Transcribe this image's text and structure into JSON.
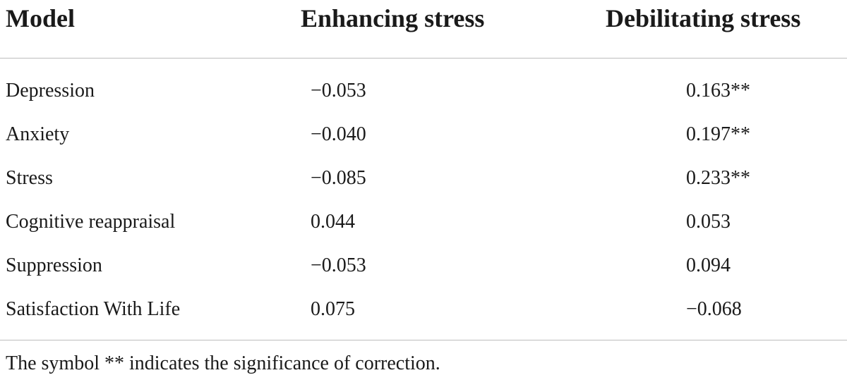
{
  "table": {
    "headers": {
      "model": "Model",
      "enhancing": "Enhancing stress",
      "debilitating": "Debilitating stress"
    },
    "rows": [
      {
        "label": "Depression",
        "enhancing": "−0.053",
        "debilitating": "0.163**"
      },
      {
        "label": "Anxiety",
        "enhancing": "−0.040",
        "debilitating": "0.197**"
      },
      {
        "label": "Stress",
        "enhancing": "−0.085",
        "debilitating": "0.233**"
      },
      {
        "label": "Cognitive reappraisal",
        "enhancing": "0.044",
        "debilitating": "0.053"
      },
      {
        "label": "Suppression",
        "enhancing": "−0.053",
        "debilitating": "0.094"
      },
      {
        "label": "Satisfaction With Life",
        "enhancing": "0.075",
        "debilitating": "−0.068"
      }
    ],
    "footnote": "The symbol ** indicates the significance of correction."
  }
}
